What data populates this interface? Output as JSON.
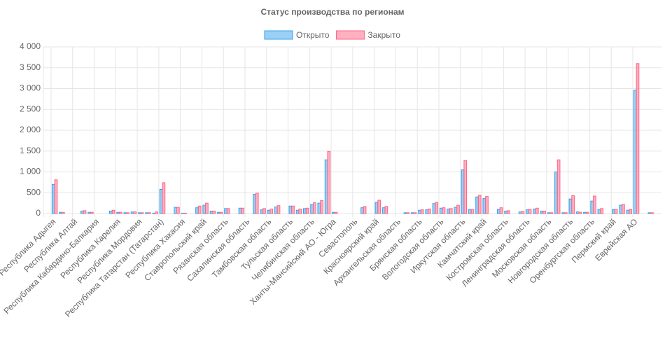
{
  "chart_data": {
    "type": "bar",
    "title": "Статус производства по регионам",
    "categories": [
      "Республика Адыгея",
      null,
      null,
      "Республика Алтай",
      null,
      null,
      "Республика Кабардино-Балкария",
      null,
      null,
      "Республика Карелия",
      null,
      null,
      "Республика Мордовия",
      null,
      null,
      "Республика Татарстан (Татарстан)",
      null,
      null,
      "Республика Хакасия",
      null,
      null,
      "Ставропольский край",
      null,
      null,
      "Рязанская область",
      null,
      null,
      "Сахалинская область",
      null,
      null,
      "Тамбовская область",
      null,
      null,
      "Тульская область",
      null,
      null,
      "Челябинская область",
      null,
      null,
      "Ханты-Мансийский АО - Югра",
      null,
      null,
      "Севастополь",
      null,
      null,
      "Красноярский край",
      null,
      null,
      "Архангельская область",
      null,
      null,
      "Брянская область",
      null,
      null,
      "Вологодская область",
      null,
      null,
      "Иркутская область",
      null,
      null,
      "Камчатский край",
      null,
      null,
      "Костромская область",
      null,
      null,
      "Ленинградская область",
      null,
      null,
      "Московская область",
      null,
      null,
      "Новгородская область",
      null,
      null,
      "Оренбургская область",
      null,
      null,
      "Пермский край",
      null,
      null,
      "Еврейская АО",
      null,
      null,
      null
    ],
    "series": [
      {
        "name": "Открыто",
        "color": "rgba(54,162,235,0.5)",
        "border": "#36a2eb",
        "values": [
          700,
          30,
          0,
          0,
          60,
          30,
          0,
          0,
          60,
          30,
          20,
          40,
          20,
          20,
          10,
          580,
          0,
          150,
          10,
          0,
          140,
          200,
          60,
          30,
          120,
          0,
          130,
          0,
          460,
          90,
          80,
          160,
          0,
          180,
          80,
          120,
          220,
          250,
          1290,
          30,
          0,
          0,
          0,
          140,
          0,
          270,
          140,
          0,
          0,
          20,
          20,
          80,
          90,
          240,
          130,
          110,
          150,
          1050,
          100,
          400,
          360,
          0,
          100,
          60,
          0,
          40,
          90,
          110,
          60,
          20,
          1000,
          20,
          350,
          40,
          30,
          300,
          100,
          0,
          100,
          200,
          80,
          2960,
          0,
          20,
          0
        ]
      },
      {
        "name": "Закрыто",
        "color": "rgba(255,99,132,0.5)",
        "border": "#ff6384",
        "values": [
          810,
          30,
          0,
          0,
          70,
          30,
          0,
          0,
          80,
          30,
          20,
          40,
          20,
          20,
          40,
          740,
          0,
          150,
          10,
          0,
          180,
          250,
          60,
          30,
          120,
          0,
          130,
          0,
          490,
          120,
          110,
          190,
          0,
          180,
          110,
          130,
          260,
          310,
          1490,
          30,
          0,
          0,
          0,
          170,
          0,
          320,
          170,
          0,
          0,
          20,
          20,
          90,
          110,
          270,
          140,
          120,
          200,
          1270,
          100,
          440,
          410,
          0,
          140,
          70,
          0,
          50,
          100,
          130,
          60,
          20,
          1290,
          20,
          430,
          30,
          30,
          420,
          120,
          0,
          100,
          220,
          100,
          3600,
          0,
          20,
          0
        ]
      }
    ],
    "ylim": [
      0,
      4000
    ],
    "yticks": [
      0,
      500,
      {
        "value": 1000,
        "label": "1 000"
      },
      {
        "value": 1500,
        "label": "1 500"
      },
      {
        "value": 2000,
        "label": "2 000"
      },
      {
        "value": 2500,
        "label": "2 500"
      },
      {
        "value": 3000,
        "label": "3 000"
      },
      {
        "value": 3500,
        "label": "3 500"
      },
      {
        "value": 4000,
        "label": "4 000"
      }
    ],
    "grid": true,
    "legend": "top"
  }
}
